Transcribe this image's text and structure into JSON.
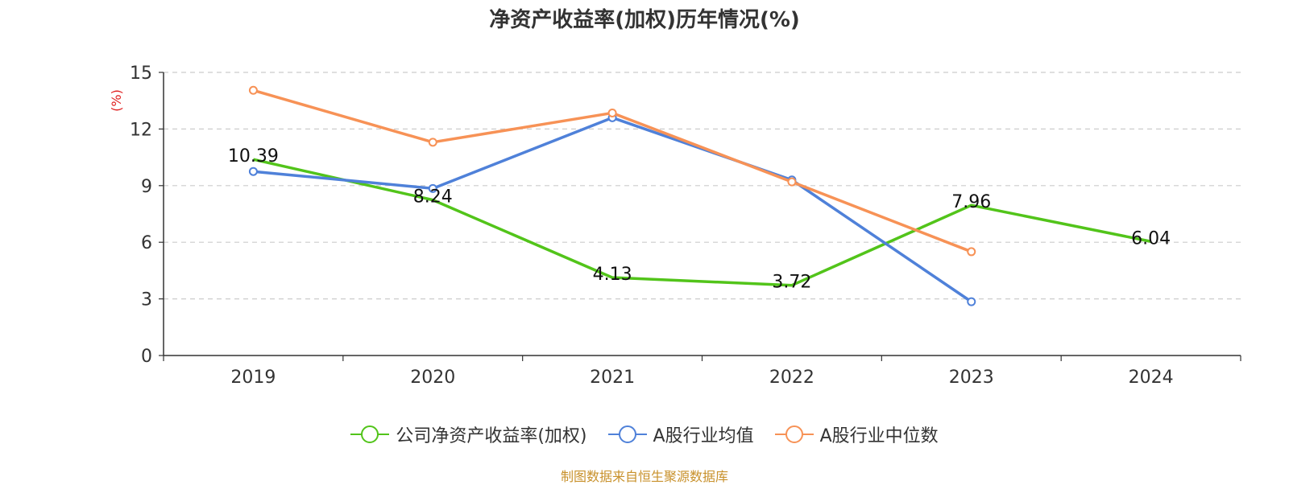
{
  "title": "净资产收益率(加权)历年情况(%)",
  "source_note": "制图数据来自恒生聚源数据库",
  "colors": {
    "company": "#52c41a",
    "avg": "#4f81d9",
    "median": "#f79256",
    "ylabel": "#e02020",
    "source": "#c8912b"
  },
  "chart_data": {
    "type": "line",
    "title": "净资产收益率(加权)历年情况(%)",
    "ylabel": "(%)",
    "xlabel": "",
    "categories": [
      "2019",
      "2020",
      "2021",
      "2022",
      "2023",
      "2024"
    ],
    "ylim": [
      0,
      15
    ],
    "yticks": [
      0,
      3,
      6,
      9,
      12,
      15
    ],
    "grid": true,
    "legend_position": "bottom",
    "series": [
      {
        "name": "公司净资产收益率(加权)",
        "color": "#52c41a",
        "values": [
          10.39,
          8.24,
          4.13,
          3.72,
          7.96,
          6.04
        ],
        "labels": [
          "10.39",
          "8.24",
          "4.13",
          "3.72",
          "7.96",
          "6.04"
        ],
        "show_markers": false
      },
      {
        "name": "A股行业均值",
        "color": "#4f81d9",
        "values": [
          9.75,
          8.85,
          12.6,
          9.3,
          2.85,
          null
        ],
        "show_markers": true
      },
      {
        "name": "A股行业中位数",
        "color": "#f79256",
        "values": [
          14.05,
          11.3,
          12.85,
          9.2,
          5.5,
          null
        ],
        "show_markers": true
      }
    ]
  }
}
